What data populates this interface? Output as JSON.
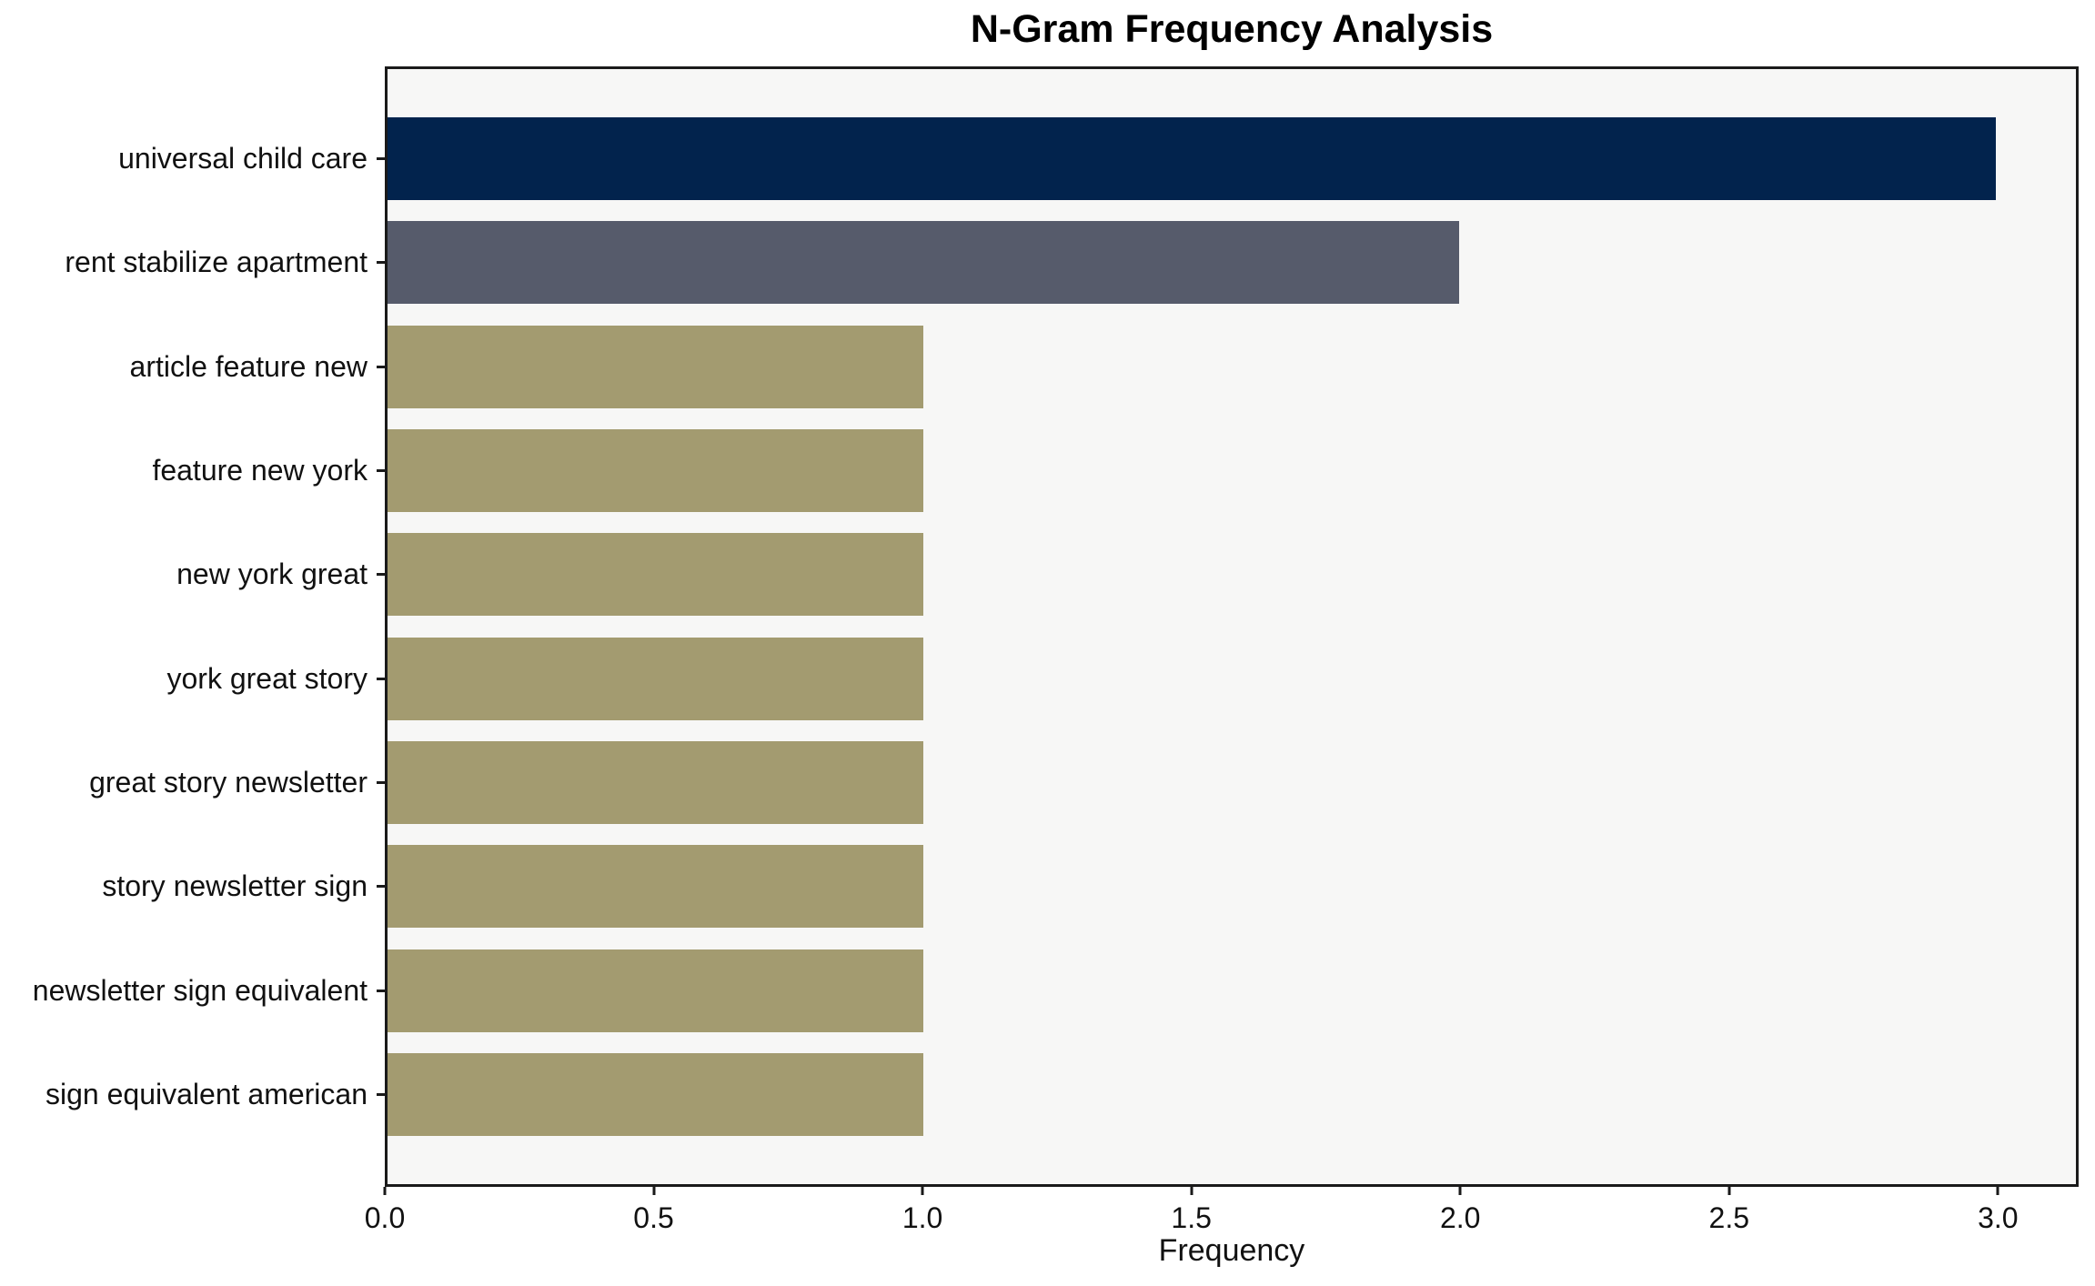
{
  "title": "N-Gram Frequency Analysis",
  "chart_data": {
    "type": "bar",
    "orientation": "horizontal",
    "title": "N-Gram Frequency Analysis",
    "xlabel": "Frequency",
    "ylabel": "",
    "categories": [
      "universal child care",
      "rent stabilize apartment",
      "article feature new",
      "feature new york",
      "new york great",
      "york great story",
      "great story newsletter",
      "story newsletter sign",
      "newsletter sign equivalent",
      "sign equivalent american"
    ],
    "values": [
      3,
      2,
      1,
      1,
      1,
      1,
      1,
      1,
      1,
      1
    ],
    "bar_colors": [
      "#02234d",
      "#565b6b",
      "#a39b70",
      "#a39b70",
      "#a39b70",
      "#a39b70",
      "#a39b70",
      "#a39b70",
      "#a39b70",
      "#a39b70"
    ],
    "xlim": [
      0,
      3.15
    ],
    "xticks": [
      {
        "value": 0.0,
        "label": "0.0"
      },
      {
        "value": 0.5,
        "label": "0.5"
      },
      {
        "value": 1.0,
        "label": "1.0"
      },
      {
        "value": 1.5,
        "label": "1.5"
      },
      {
        "value": 2.0,
        "label": "2.0"
      },
      {
        "value": 2.5,
        "label": "2.5"
      },
      {
        "value": 3.0,
        "label": "3.0"
      }
    ],
    "grid": false,
    "legend": null,
    "plot_background": "#f7f7f6",
    "figure_background": "#ffffff",
    "spine_color": "#1a1a1a"
  }
}
